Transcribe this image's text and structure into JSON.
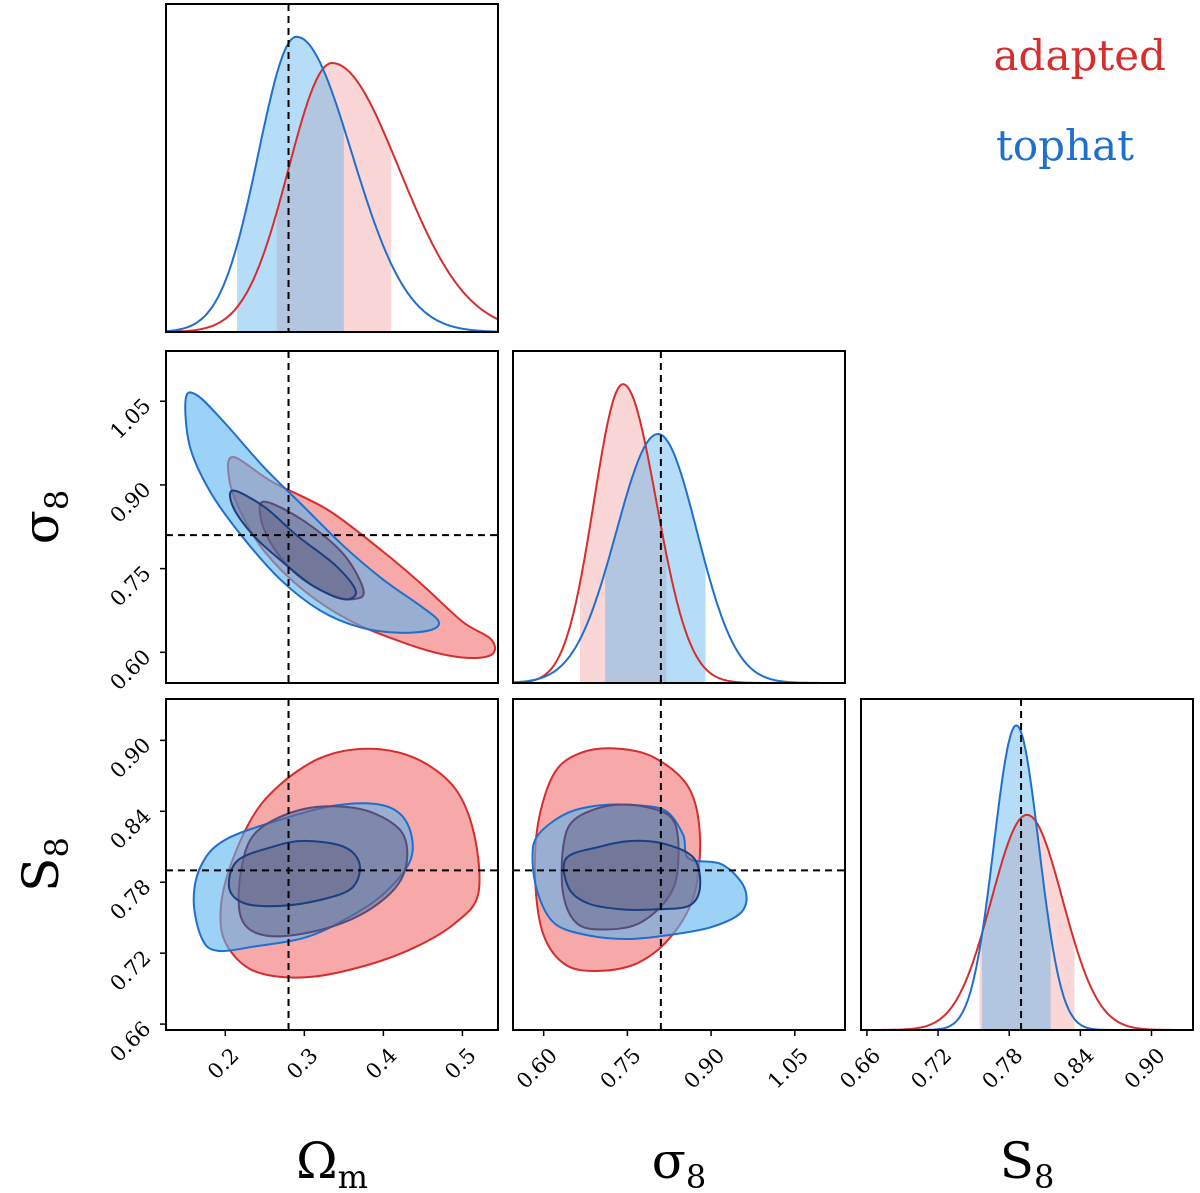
{
  "chart_data": {
    "type": "corner",
    "parameters": [
      {
        "key": "Om",
        "label": "Ω",
        "sub": "m",
        "range": [
          0.125,
          0.545
        ],
        "ticks": [
          0.2,
          0.3,
          0.4,
          0.5
        ],
        "tick_labels": [
          "0.2",
          "0.3",
          "0.4",
          "0.5"
        ],
        "truth": 0.28
      },
      {
        "key": "s8",
        "label": "σ",
        "sub": "8",
        "range": [
          0.545,
          1.14
        ],
        "ticks": [
          0.6,
          0.75,
          0.9,
          1.05
        ],
        "tick_labels": [
          "0.60",
          "0.75",
          "0.90",
          "1.05"
        ],
        "truth": 0.81
      },
      {
        "key": "S8",
        "label": "S",
        "sub": "8",
        "range": [
          0.655,
          0.935
        ],
        "ticks": [
          0.66,
          0.72,
          0.78,
          0.84,
          0.9
        ],
        "tick_labels": [
          "0.66",
          "0.72",
          "0.78",
          "0.84",
          "0.90"
        ],
        "truth": 0.79
      }
    ],
    "series": [
      {
        "name": "adapted",
        "color": "#d62d2d",
        "fill": "#f7a3a3",
        "marginals": {
          "Om": {
            "peak": 0.335,
            "sd_left": 0.055,
            "sd_right": 0.085,
            "height": 0.82,
            "band": [
              0.265,
              0.41
            ]
          },
          "s8": {
            "peak": 0.742,
            "sd_left": 0.052,
            "sd_right": 0.06,
            "height": 0.9,
            "band": [
              0.665,
              0.82
            ]
          },
          "S8": {
            "peak": 0.795,
            "sd_left": 0.03,
            "sd_right": 0.03,
            "height": 0.65,
            "band": [
              0.755,
              0.835
            ]
          }
        },
        "contours": {
          "s8_vs_Om": {
            "outer": [
              [
                0.21,
                0.95
              ],
              [
                0.26,
                0.905
              ],
              [
                0.33,
                0.855
              ],
              [
                0.4,
                0.78
              ],
              [
                0.45,
                0.72
              ],
              [
                0.5,
                0.655
              ],
              [
                0.535,
                0.625
              ],
              [
                0.54,
                0.6
              ],
              [
                0.52,
                0.59
              ],
              [
                0.48,
                0.595
              ],
              [
                0.43,
                0.615
              ],
              [
                0.36,
                0.655
              ],
              [
                0.3,
                0.71
              ],
              [
                0.25,
                0.78
              ],
              [
                0.22,
                0.85
              ],
              [
                0.205,
                0.91
              ]
            ],
            "inner": [
              [
                0.25,
                0.87
              ],
              [
                0.3,
                0.835
              ],
              [
                0.35,
                0.775
              ],
              [
                0.375,
                0.71
              ],
              [
                0.36,
                0.695
              ],
              [
                0.33,
                0.705
              ],
              [
                0.29,
                0.74
              ],
              [
                0.26,
                0.79
              ],
              [
                0.245,
                0.84
              ]
            ]
          },
          "S8_vs_Om": {
            "outer": [
              [
                0.265,
                0.86
              ],
              [
                0.32,
                0.885
              ],
              [
                0.38,
                0.893
              ],
              [
                0.44,
                0.885
              ],
              [
                0.49,
                0.86
              ],
              [
                0.515,
                0.82
              ],
              [
                0.52,
                0.77
              ],
              [
                0.49,
                0.745
              ],
              [
                0.44,
                0.725
              ],
              [
                0.38,
                0.71
              ],
              [
                0.31,
                0.7
              ],
              [
                0.25,
                0.702
              ],
              [
                0.215,
                0.715
              ],
              [
                0.195,
                0.74
              ],
              [
                0.2,
                0.78
              ],
              [
                0.23,
                0.83
              ]
            ],
            "inner": [
              [
                0.24,
                0.823
              ],
              [
                0.3,
                0.842
              ],
              [
                0.37,
                0.842
              ],
              [
                0.42,
                0.825
              ],
              [
                0.43,
                0.8
              ],
              [
                0.415,
                0.775
              ],
              [
                0.37,
                0.752
              ],
              [
                0.31,
                0.738
              ],
              [
                0.25,
                0.735
              ],
              [
                0.22,
                0.75
              ],
              [
                0.22,
                0.79
              ]
            ]
          },
          "S8_vs_s8": {
            "outer": [
              [
                0.62,
                0.873
              ],
              [
                0.67,
                0.89
              ],
              [
                0.735,
                0.893
              ],
              [
                0.8,
                0.885
              ],
              [
                0.86,
                0.86
              ],
              [
                0.88,
                0.82
              ],
              [
                0.87,
                0.77
              ],
              [
                0.83,
                0.735
              ],
              [
                0.77,
                0.712
              ],
              [
                0.7,
                0.705
              ],
              [
                0.64,
                0.71
              ],
              [
                0.6,
                0.735
              ],
              [
                0.585,
                0.78
              ],
              [
                0.59,
                0.83
              ]
            ],
            "inner": [
              [
                0.655,
                0.833
              ],
              [
                0.72,
                0.845
              ],
              [
                0.79,
                0.843
              ],
              [
                0.835,
                0.83
              ],
              [
                0.84,
                0.79
              ],
              [
                0.82,
                0.765
              ],
              [
                0.77,
                0.745
              ],
              [
                0.71,
                0.74
              ],
              [
                0.66,
                0.745
              ],
              [
                0.635,
                0.77
              ],
              [
                0.635,
                0.81
              ]
            ]
          }
        }
      },
      {
        "name": "tophat",
        "color": "#1f6fcc",
        "fill": "#5ab4ee",
        "marginals": {
          "Om": {
            "peak": 0.29,
            "sd_left": 0.048,
            "sd_right": 0.07,
            "height": 0.9,
            "band": [
              0.215,
              0.35
            ]
          },
          "s8": {
            "peak": 0.805,
            "sd_left": 0.075,
            "sd_right": 0.07,
            "height": 0.75,
            "band": [
              0.71,
              0.89
            ]
          },
          "S8": {
            "peak": 0.786,
            "sd_left": 0.019,
            "sd_right": 0.019,
            "height": 0.92,
            "band": [
              0.757,
              0.815
            ]
          }
        },
        "contours": {
          "s8_vs_Om": {
            "outer": [
              [
                0.15,
                1.055
              ],
              [
                0.165,
                1.06
              ],
              [
                0.2,
                1.01
              ],
              [
                0.25,
                0.93
              ],
              [
                0.3,
                0.86
              ],
              [
                0.35,
                0.79
              ],
              [
                0.4,
                0.73
              ],
              [
                0.45,
                0.68
              ],
              [
                0.47,
                0.655
              ],
              [
                0.46,
                0.64
              ],
              [
                0.42,
                0.635
              ],
              [
                0.37,
                0.645
              ],
              [
                0.32,
                0.675
              ],
              [
                0.27,
                0.73
              ],
              [
                0.22,
                0.81
              ],
              [
                0.18,
                0.89
              ],
              [
                0.155,
                0.97
              ]
            ],
            "inner": [
              [
                0.21,
                0.89
              ],
              [
                0.25,
                0.86
              ],
              [
                0.29,
                0.81
              ],
              [
                0.34,
                0.755
              ],
              [
                0.365,
                0.71
              ],
              [
                0.35,
                0.695
              ],
              [
                0.31,
                0.72
              ],
              [
                0.27,
                0.765
              ],
              [
                0.235,
                0.81
              ],
              [
                0.21,
                0.86
              ]
            ]
          },
          "S8_vs_Om": {
            "outer": [
              [
                0.2,
                0.816
              ],
              [
                0.27,
                0.833
              ],
              [
                0.34,
                0.845
              ],
              [
                0.4,
                0.845
              ],
              [
                0.43,
                0.83
              ],
              [
                0.435,
                0.8
              ],
              [
                0.4,
                0.77
              ],
              [
                0.35,
                0.748
              ],
              [
                0.3,
                0.733
              ],
              [
                0.24,
                0.726
              ],
              [
                0.19,
                0.722
              ],
              [
                0.17,
                0.733
              ],
              [
                0.16,
                0.765
              ],
              [
                0.17,
                0.795
              ]
            ],
            "inner": [
              [
                0.215,
                0.798
              ],
              [
                0.26,
                0.81
              ],
              [
                0.3,
                0.815
              ],
              [
                0.35,
                0.81
              ],
              [
                0.37,
                0.795
              ],
              [
                0.36,
                0.775
              ],
              [
                0.32,
                0.765
              ],
              [
                0.27,
                0.76
              ],
              [
                0.225,
                0.762
              ],
              [
                0.205,
                0.775
              ]
            ]
          },
          "S8_vs_s8": {
            "outer": [
              [
                0.59,
                0.82
              ],
              [
                0.64,
                0.838
              ],
              [
                0.7,
                0.845
              ],
              [
                0.77,
                0.845
              ],
              [
                0.82,
                0.84
              ],
              [
                0.85,
                0.82
              ],
              [
                0.86,
                0.8
              ],
              [
                0.92,
                0.795
              ],
              [
                0.96,
                0.775
              ],
              [
                0.955,
                0.755
              ],
              [
                0.9,
                0.742
              ],
              [
                0.82,
                0.735
              ],
              [
                0.75,
                0.732
              ],
              [
                0.68,
                0.735
              ],
              [
                0.62,
                0.745
              ],
              [
                0.59,
                0.77
              ],
              [
                0.58,
                0.8
              ]
            ],
            "inner": [
              [
                0.64,
                0.8
              ],
              [
                0.7,
                0.81
              ],
              [
                0.76,
                0.815
              ],
              [
                0.82,
                0.812
              ],
              [
                0.87,
                0.8
              ],
              [
                0.88,
                0.775
              ],
              [
                0.86,
                0.76
              ],
              [
                0.8,
                0.757
              ],
              [
                0.74,
                0.757
              ],
              [
                0.68,
                0.762
              ],
              [
                0.645,
                0.775
              ]
            ]
          }
        }
      }
    ],
    "legend": [
      "adapted",
      "tophat"
    ],
    "overlap_fill": "#c9b8cf",
    "overlap_inner": "#6a6a8c"
  }
}
